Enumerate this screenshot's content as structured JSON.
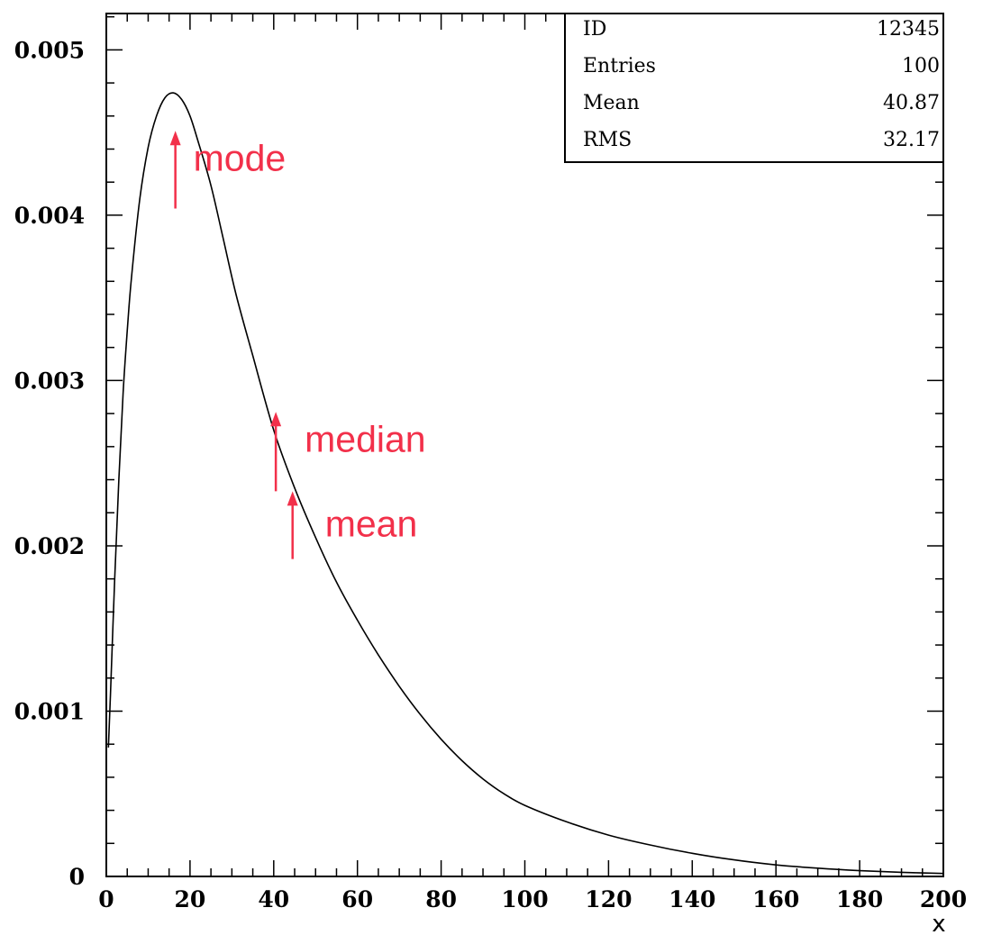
{
  "chart_data": {
    "type": "line",
    "xlabel": "x",
    "ylabel": "",
    "xlim": [
      0,
      200
    ],
    "ylim": [
      0,
      0.00522
    ],
    "x_ticks": [
      0,
      20,
      40,
      60,
      80,
      100,
      120,
      140,
      160,
      180,
      200
    ],
    "x_tick_labels": [
      "0",
      "20",
      "40",
      "60",
      "80",
      "100",
      "120",
      "140",
      "160",
      "180",
      "200"
    ],
    "y_ticks": [
      0,
      0.001,
      0.002,
      0.003,
      0.004,
      0.005
    ],
    "y_tick_labels": [
      "0",
      "0.001",
      "0.002",
      "0.003",
      "0.004",
      "0.005"
    ],
    "series": [
      {
        "x": [
          0.5,
          1,
          2,
          3,
          4,
          5,
          6,
          8,
          10,
          12,
          14,
          16,
          18,
          20,
          22,
          25,
          28,
          31,
          35,
          40,
          45,
          50,
          55,
          60,
          65,
          70,
          75,
          80,
          85,
          90,
          95,
          100,
          110,
          120,
          130,
          140,
          150,
          160,
          170,
          180,
          190,
          200
        ],
        "y": [
          0.00078,
          0.0011,
          0.0018,
          0.0024,
          0.00292,
          0.0033,
          0.00362,
          0.0041,
          0.00441,
          0.0046,
          0.00471,
          0.00474,
          0.0047,
          0.0046,
          0.00444,
          0.00418,
          0.00385,
          0.00352,
          0.00315,
          0.0027,
          0.00235,
          0.00205,
          0.00178,
          0.00155,
          0.00134,
          0.00115,
          0.00098,
          0.00083,
          0.0007,
          0.00059,
          0.0005,
          0.00043,
          0.00033,
          0.00025,
          0.00019,
          0.00014,
          0.0001,
          7e-05,
          5e-05,
          3.5e-05,
          2.5e-05,
          1.8e-05
        ],
        "color": "#000000"
      }
    ],
    "annotations": [
      {
        "text": "mode",
        "x": 16.5,
        "y_tail": 0.00404,
        "y_head": 0.00451,
        "color": "#f2304a"
      },
      {
        "text": "median",
        "x": 40.5,
        "y_tail": 0.00233,
        "y_head": 0.00281,
        "color": "#f2304a"
      },
      {
        "text": "mean",
        "x": 44.5,
        "y_tail": 0.00192,
        "y_head": 0.00233,
        "color": "#f2304a"
      }
    ],
    "stats_box": {
      "rows": [
        {
          "label": "ID",
          "value": "12345"
        },
        {
          "label": "Entries",
          "value": "100"
        },
        {
          "label": "Mean",
          "value": "40.87"
        },
        {
          "label": "RMS",
          "value": "32.17"
        }
      ]
    },
    "grid": false
  }
}
